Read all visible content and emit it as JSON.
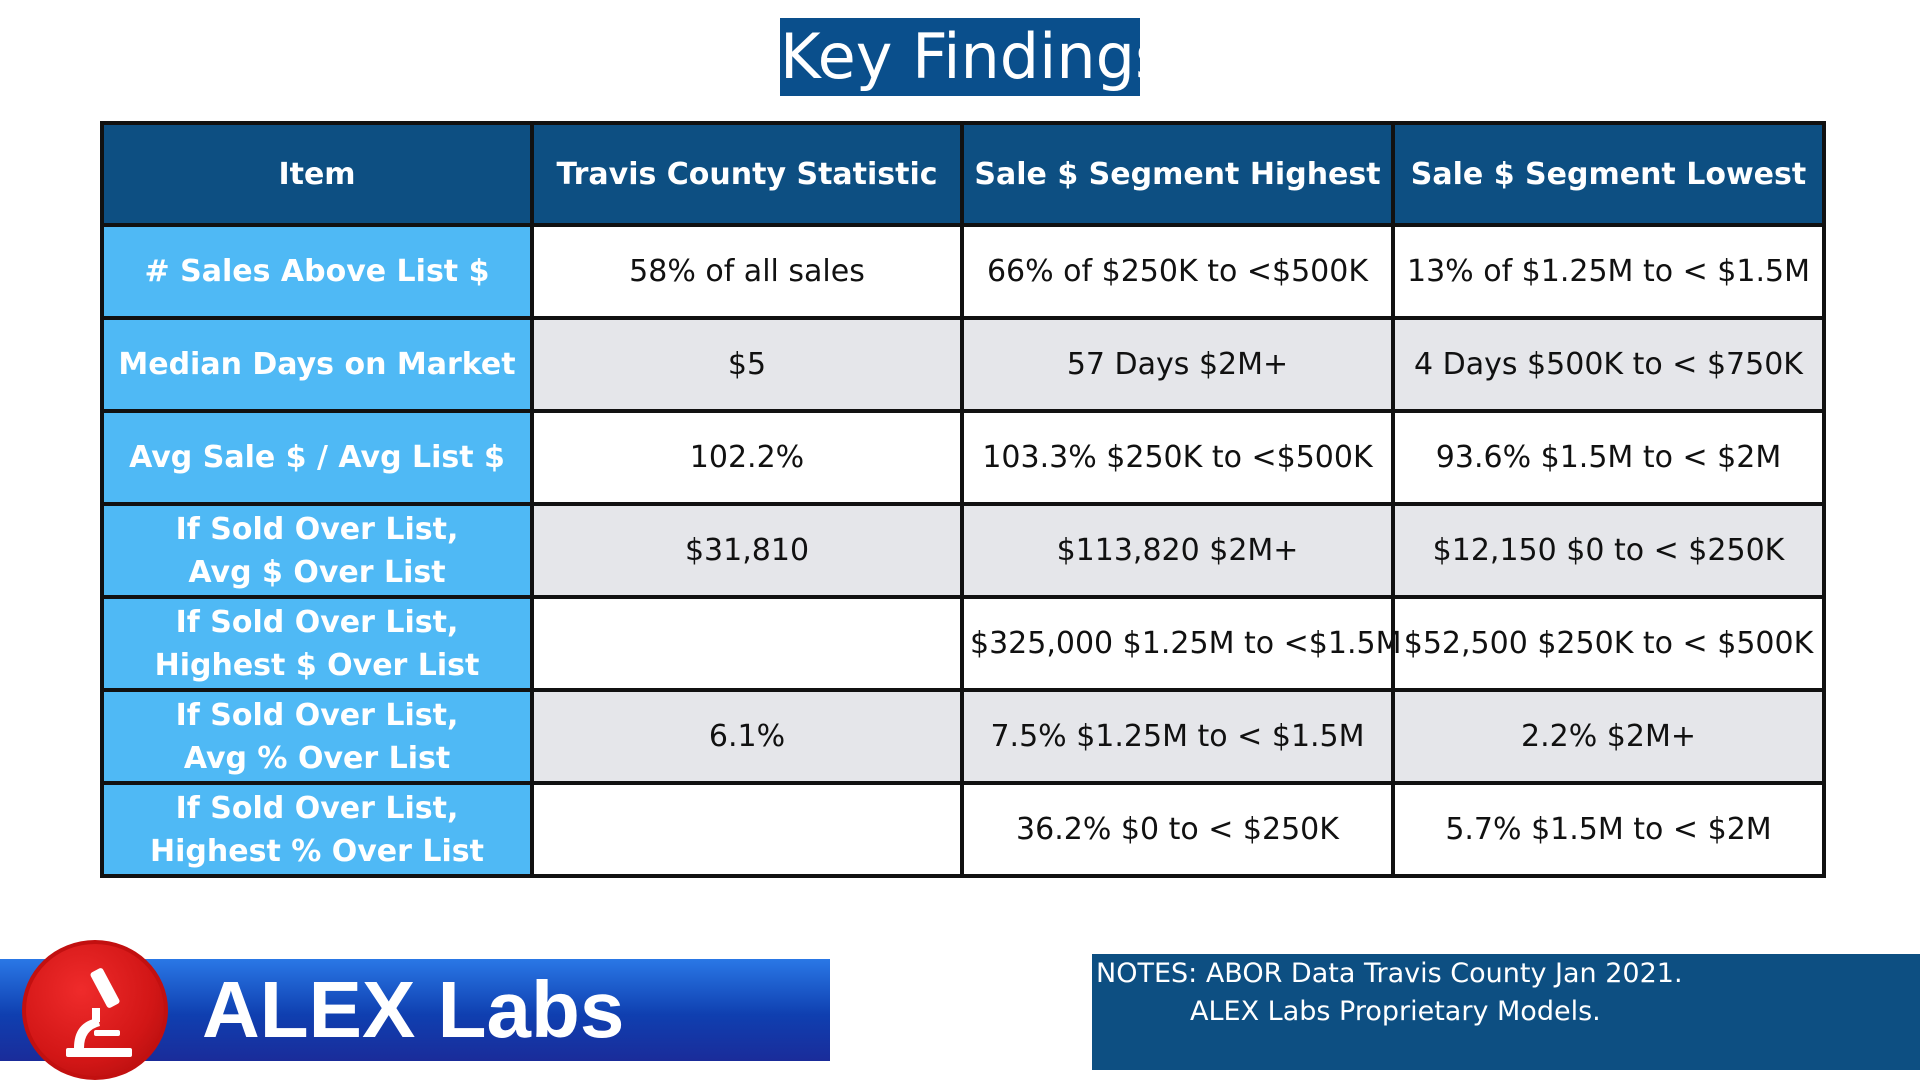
{
  "title": "Key Findings",
  "table": {
    "headers": [
      "Item",
      "Travis County Statistic",
      "Sale $ Segment Highest",
      "Sale $ Segment Lowest"
    ],
    "rows": [
      {
        "item_line1": "# Sales Above List $",
        "item_line2": "",
        "stat": "58% of all sales",
        "highest": "66% of $250K to <$500K",
        "lowest": "13% of $1.25M to < $1.5M"
      },
      {
        "item_line1": "Median Days on Market",
        "item_line2": "",
        "stat": "$5",
        "highest": "57 Days $2M+",
        "lowest": "4 Days $500K to < $750K"
      },
      {
        "item_line1": "Avg Sale $ / Avg List $",
        "item_line2": "",
        "stat": "102.2%",
        "highest": "103.3% $250K to <$500K",
        "lowest": "93.6% $1.5M to < $2M"
      },
      {
        "item_line1": "If Sold Over List,",
        "item_line2": "Avg $ Over List",
        "stat": "$31,810",
        "highest": "$113,820 $2M+",
        "lowest": "$12,150 $0 to < $250K"
      },
      {
        "item_line1": "If Sold Over List,",
        "item_line2": "Highest $ Over List",
        "stat": "",
        "highest": "$325,000 $1.25M to <$1.5M",
        "lowest": "$52,500 $250K to < $500K"
      },
      {
        "item_line1": "If Sold Over List,",
        "item_line2": "Avg % Over List",
        "stat": "6.1%",
        "highest": "7.5% $1.25M to < $1.5M",
        "lowest": "2.2% $2M+"
      },
      {
        "item_line1": "If Sold Over List,",
        "item_line2": "Highest % Over List",
        "stat": "",
        "highest": "36.2% $0 to < $250K",
        "lowest": "5.7% $1.5M to < $2M"
      }
    ]
  },
  "brand": {
    "name": "ALEX Labs",
    "logo_icon": "microscope-icon"
  },
  "notes": {
    "line1": "NOTES: ABOR Data Travis County Jan 2021.",
    "line2": "ALEX Labs Proprietary Models."
  },
  "colors": {
    "header_bg": "#0d4f82",
    "item_bg": "#4fb9f5",
    "row_alt_bg": "#e5e6ea",
    "brand_red": "#d21616",
    "brand_blue": "#0f3fb0"
  }
}
